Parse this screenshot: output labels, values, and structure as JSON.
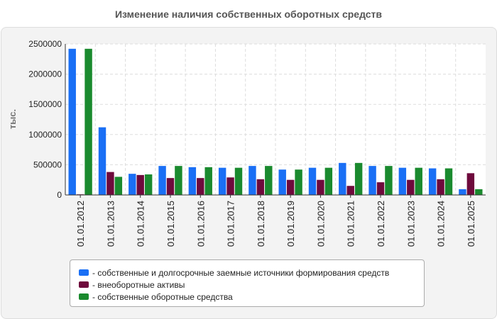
{
  "chart_data": {
    "type": "bar",
    "title": "Изменение наличия собственных оборотных средств",
    "ylabel": "тыс.",
    "xlabel": "",
    "ylim": [
      0,
      2500000
    ],
    "yticks": [
      0,
      500000,
      1000000,
      1500000,
      2000000,
      2500000
    ],
    "grid": true,
    "legend_position": "bottom",
    "categories": [
      "01.01.2012",
      "01.01.2013",
      "01.01.2014",
      "01.01.2015",
      "01.01.2016",
      "01.01.2017",
      "01.01.2018",
      "01.01.2019",
      "01.01.2020",
      "01.01.2021",
      "01.01.2022",
      "01.01.2023",
      "01.01.2024",
      "01.01.2025"
    ],
    "series": [
      {
        "name": "- собственные и долгосрочные заемные источники формирования средств",
        "color": "#1a6ff5",
        "values": [
          2420000,
          1120000,
          350000,
          480000,
          460000,
          450000,
          480000,
          420000,
          450000,
          530000,
          480000,
          450000,
          440000,
          95000
        ]
      },
      {
        "name": "- внеоборотные активы",
        "color": "#6e0a3c",
        "values": [
          10000,
          380000,
          330000,
          280000,
          280000,
          290000,
          260000,
          250000,
          250000,
          150000,
          210000,
          250000,
          260000,
          360000
        ]
      },
      {
        "name": "- собственные оборотные средства",
        "color": "#1a8a2e",
        "values": [
          2420000,
          300000,
          340000,
          480000,
          460000,
          450000,
          480000,
          420000,
          450000,
          530000,
          480000,
          450000,
          440000,
          95000
        ]
      }
    ]
  }
}
